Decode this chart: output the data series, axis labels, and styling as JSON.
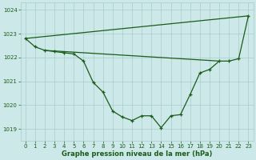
{
  "title": "Graphe pression niveau de la mer (hPa)",
  "bg_color": "#cce8e8",
  "grid_color": "#aacccc",
  "line_color": "#1a5c1a",
  "text_color": "#1a5c1a",
  "xlim": [
    -0.5,
    23.5
  ],
  "ylim": [
    1018.5,
    1024.3
  ],
  "yticks": [
    1019,
    1020,
    1021,
    1022,
    1023,
    1024
  ],
  "xticks": [
    0,
    1,
    2,
    3,
    4,
    5,
    6,
    7,
    8,
    9,
    10,
    11,
    12,
    13,
    14,
    15,
    16,
    17,
    18,
    19,
    20,
    21,
    22,
    23
  ],
  "series1_x": [
    0,
    1,
    2,
    3,
    4,
    5,
    6,
    7,
    8,
    9,
    10,
    11,
    12,
    13,
    14,
    15,
    16,
    17,
    18,
    19,
    20,
    21,
    22,
    23
  ],
  "series1_y": [
    1022.8,
    1022.45,
    1022.3,
    1022.25,
    1022.2,
    1022.15,
    1021.85,
    1020.95,
    1020.55,
    1019.75,
    1019.5,
    1019.35,
    1019.55,
    1019.55,
    1019.05,
    1019.55,
    1019.6,
    1020.45,
    1021.35,
    1021.5,
    1021.85,
    1021.85,
    1021.95,
    1023.75
  ],
  "series2_x": [
    0,
    23
  ],
  "series2_y": [
    1022.8,
    1023.75
  ],
  "series3_x": [
    2,
    20
  ],
  "series3_y": [
    1022.3,
    1021.85
  ],
  "xlabel_fontsize": 6.0,
  "tick_fontsize": 5.0
}
